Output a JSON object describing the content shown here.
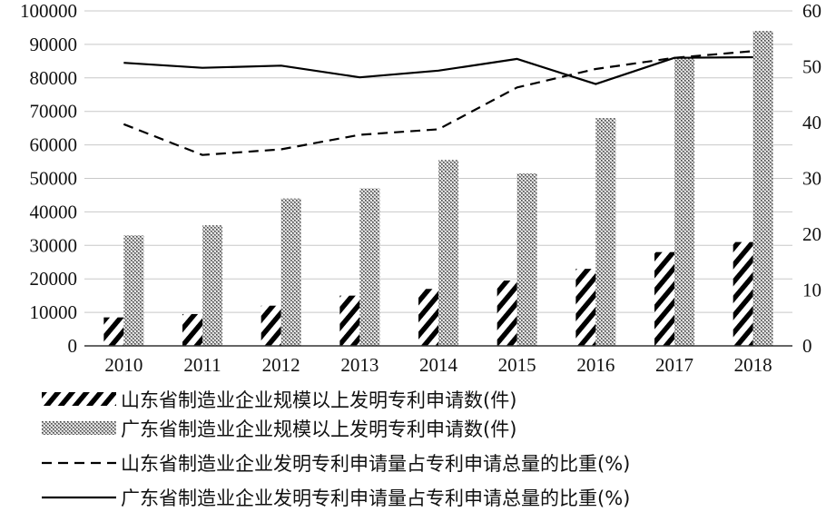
{
  "chart_data": {
    "type": "bar",
    "title": "",
    "xlabel": "",
    "ylabel": "",
    "categories": [
      "2010",
      "2011",
      "2012",
      "2013",
      "2014",
      "2015",
      "2016",
      "2017",
      "2018"
    ],
    "ylim": [
      0,
      100000
    ],
    "y2lim": [
      0,
      60
    ],
    "y_ticks": [
      "0",
      "10000",
      "20000",
      "30000",
      "40000",
      "50000",
      "60000",
      "70000",
      "80000",
      "90000",
      "100000"
    ],
    "y2_ticks": [
      "0",
      "10",
      "20",
      "30",
      "40",
      "50",
      "60"
    ],
    "grid": true,
    "legend_position": "bottom",
    "series": [
      {
        "name": "山东省制造业企业规模以上发明专利申请数(件)",
        "type": "bar",
        "axis": "left",
        "pattern": "diagonal-hatch",
        "values": [
          8500,
          9500,
          12000,
          15000,
          17000,
          19500,
          23000,
          28000,
          31000
        ]
      },
      {
        "name": "广东省制造业企业规模以上发明专利申请数(件)",
        "type": "bar",
        "axis": "left",
        "pattern": "dot-texture",
        "values": [
          33000,
          36000,
          44000,
          47000,
          55500,
          51500,
          68000,
          86000,
          94000
        ]
      },
      {
        "name": "山东省制造业企业发明专利申请量占专利申请总量的比重(%)",
        "type": "line",
        "axis": "right",
        "dash": "dashed",
        "values": [
          39.7,
          34.2,
          35.2,
          37.8,
          38.8,
          46.3,
          49.6,
          51.6,
          52.8
        ]
      },
      {
        "name": "广东省制造业企业发明专利申请量占专利申请总量的比重(%)",
        "type": "line",
        "axis": "right",
        "dash": "solid",
        "values": [
          50.7,
          49.8,
          50.2,
          48.1,
          49.3,
          51.4,
          46.9,
          51.6,
          51.7
        ]
      }
    ]
  }
}
